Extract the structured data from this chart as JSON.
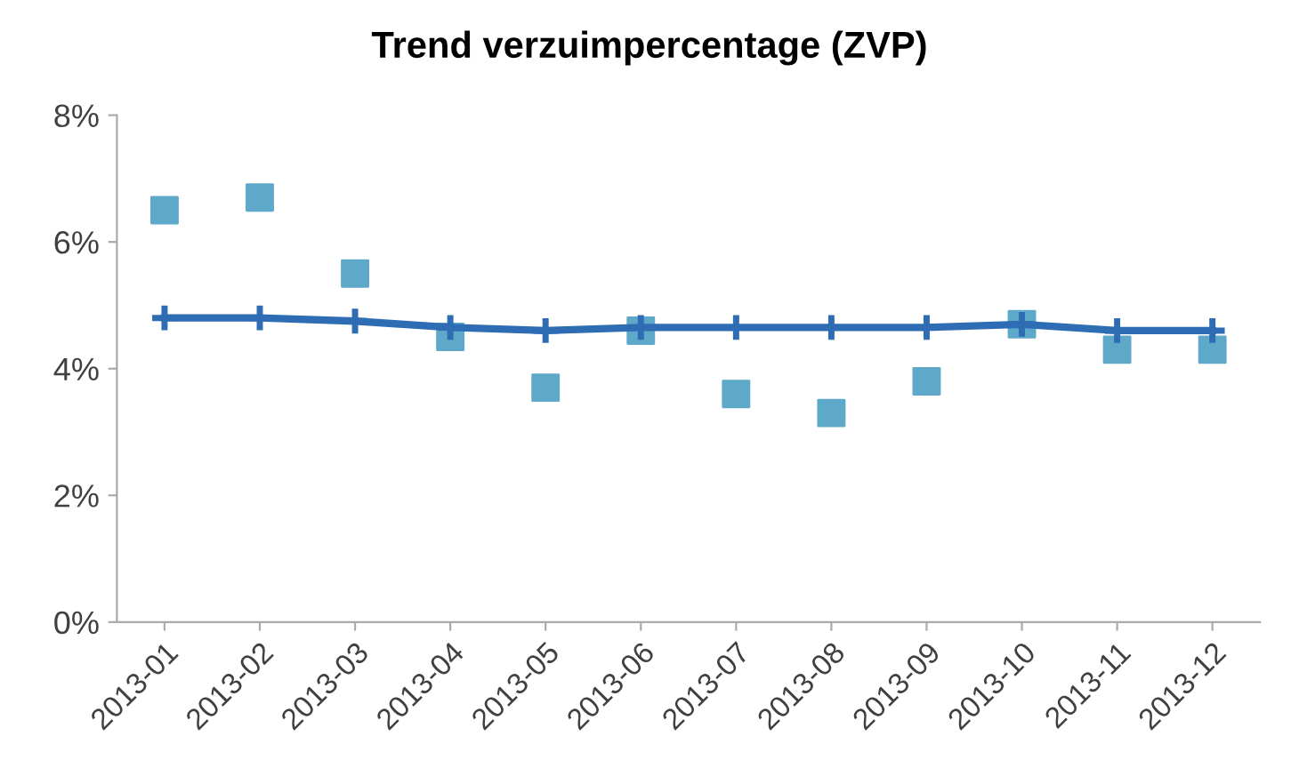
{
  "chart_data": {
    "type": "line",
    "title": "Trend verzuimpercentage (ZVP)",
    "categories": [
      "2013-01",
      "2013-02",
      "2013-03",
      "2013-04",
      "2013-05",
      "2013-06",
      "2013-07",
      "2013-08",
      "2013-09",
      "2013-10",
      "2013-11",
      "2013-12"
    ],
    "series": [
      {
        "type": "scatter",
        "color": "#5ea9c9",
        "marker": "square",
        "values": [
          6.5,
          6.7,
          5.5,
          4.5,
          3.7,
          4.6,
          3.6,
          3.3,
          3.8,
          4.7,
          4.3,
          4.3
        ]
      },
      {
        "color": "#2e6db4",
        "marker": "cross",
        "values": [
          4.8,
          4.8,
          4.75,
          4.65,
          4.6,
          4.65,
          4.65,
          4.65,
          4.65,
          4.7,
          4.6,
          4.6
        ]
      }
    ],
    "ylim": [
      0,
      8
    ],
    "yticks": [
      {
        "value": 0,
        "label": "0%"
      },
      {
        "value": 2,
        "label": "2%"
      },
      {
        "value": 4,
        "label": "4%"
      },
      {
        "value": 6,
        "label": "6%"
      },
      {
        "value": 8,
        "label": "8%"
      }
    ],
    "grid": false,
    "legend": false
  }
}
